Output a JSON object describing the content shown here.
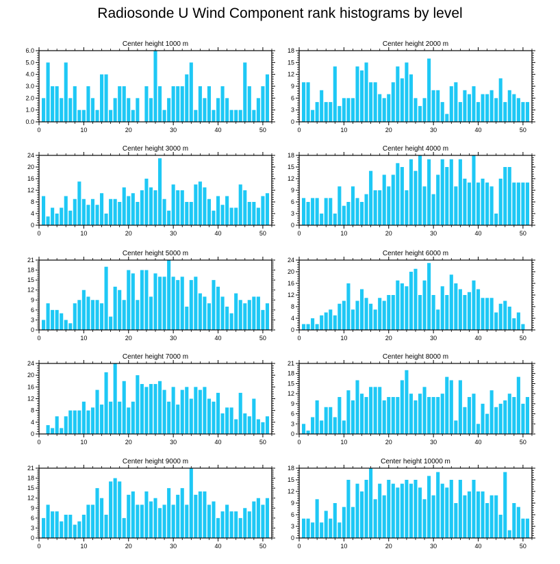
{
  "title": "Radiosonde U Wind Component rank histograms by level",
  "bar_color": "#1EC8F5",
  "chart_data": [
    {
      "type": "bar",
      "title": "Center height 1000 m",
      "xlabel": "",
      "ylabel": "",
      "xlim": [
        0,
        52
      ],
      "ylim": [
        0,
        6
      ],
      "yticks": [
        0,
        1,
        2,
        3,
        4,
        5,
        6
      ],
      "ytick_labels": [
        "0.0",
        "1.0",
        "2.0",
        "3.0",
        "4.0",
        "5.0",
        "6.0"
      ],
      "xticks": [
        0,
        10,
        20,
        30,
        40,
        50
      ],
      "xtick_labels": [
        "0",
        "10",
        "20",
        "30",
        "40",
        "50"
      ],
      "x": [
        1,
        2,
        3,
        4,
        5,
        6,
        7,
        8,
        9,
        10,
        11,
        12,
        13,
        14,
        15,
        16,
        17,
        18,
        19,
        20,
        21,
        22,
        23,
        24,
        25,
        26,
        27,
        28,
        29,
        30,
        31,
        32,
        33,
        34,
        35,
        36,
        37,
        38,
        39,
        40,
        41,
        42,
        43,
        44,
        45,
        46,
        47,
        48,
        49,
        50,
        51
      ],
      "values": [
        2,
        5,
        3,
        3,
        2,
        5,
        2,
        3,
        1,
        1,
        3,
        2,
        1,
        4,
        4,
        1,
        2,
        3,
        3,
        2,
        1,
        2,
        0,
        3,
        2,
        6,
        3,
        1,
        2,
        3,
        3,
        3,
        4,
        5,
        1,
        3,
        2,
        3,
        1,
        2,
        3,
        2,
        1,
        1,
        1,
        5,
        3,
        1,
        2,
        3,
        4
      ]
    },
    {
      "type": "bar",
      "title": "Center height 2000 m",
      "xlabel": "",
      "ylabel": "",
      "xlim": [
        0,
        52
      ],
      "ylim": [
        0,
        18
      ],
      "yticks": [
        0,
        3,
        6,
        9,
        12,
        15,
        18
      ],
      "ytick_labels": [
        "0",
        "3",
        "6",
        "9",
        "12",
        "15",
        "18"
      ],
      "xticks": [
        0,
        10,
        20,
        30,
        40,
        50
      ],
      "xtick_labels": [
        "0",
        "10",
        "20",
        "30",
        "40",
        "50"
      ],
      "x": [
        1,
        2,
        3,
        4,
        5,
        6,
        7,
        8,
        9,
        10,
        11,
        12,
        13,
        14,
        15,
        16,
        17,
        18,
        19,
        20,
        21,
        22,
        23,
        24,
        25,
        26,
        27,
        28,
        29,
        30,
        31,
        32,
        33,
        34,
        35,
        36,
        37,
        38,
        39,
        40,
        41,
        42,
        43,
        44,
        45,
        46,
        47,
        48,
        49,
        50,
        51
      ],
      "values": [
        10,
        10,
        3,
        5,
        8,
        5,
        5,
        14,
        4,
        6,
        6,
        6,
        14,
        13,
        15,
        10,
        10,
        7,
        6,
        7,
        10,
        14,
        11,
        15,
        12,
        6,
        4,
        6,
        16,
        8,
        8,
        5,
        2,
        9,
        10,
        5,
        8,
        7,
        9,
        5,
        7,
        7,
        8,
        6,
        11,
        5,
        8,
        7,
        6,
        5,
        5
      ]
    },
    {
      "type": "bar",
      "title": "Center height 3000 m",
      "xlabel": "",
      "ylabel": "",
      "xlim": [
        0,
        52
      ],
      "ylim": [
        0,
        24
      ],
      "yticks": [
        0,
        4,
        8,
        12,
        16,
        20,
        24
      ],
      "ytick_labels": [
        "0",
        "4",
        "8",
        "12",
        "16",
        "20",
        "24"
      ],
      "xticks": [
        0,
        10,
        20,
        30,
        40,
        50
      ],
      "xtick_labels": [
        "0",
        "10",
        "20",
        "30",
        "40",
        "50"
      ],
      "x": [
        1,
        2,
        3,
        4,
        5,
        6,
        7,
        8,
        9,
        10,
        11,
        12,
        13,
        14,
        15,
        16,
        17,
        18,
        19,
        20,
        21,
        22,
        23,
        24,
        25,
        26,
        27,
        28,
        29,
        30,
        31,
        32,
        33,
        34,
        35,
        36,
        37,
        38,
        39,
        40,
        41,
        42,
        43,
        44,
        45,
        46,
        47,
        48,
        49,
        50,
        51
      ],
      "values": [
        10,
        3,
        6,
        4,
        6,
        10,
        5,
        9,
        15,
        9,
        7,
        9,
        7,
        11,
        4,
        9,
        9,
        8,
        13,
        10,
        11,
        8,
        12,
        16,
        13,
        12,
        23,
        9,
        5,
        14,
        12,
        12,
        8,
        8,
        14,
        15,
        13,
        9,
        5,
        10,
        7,
        10,
        6,
        6,
        14,
        12,
        8,
        8,
        6,
        10,
        11
      ]
    },
    {
      "type": "bar",
      "title": "Center height 4000 m",
      "xlabel": "",
      "ylabel": "",
      "xlim": [
        0,
        52
      ],
      "ylim": [
        0,
        18
      ],
      "yticks": [
        0,
        3,
        6,
        9,
        12,
        15,
        18
      ],
      "ytick_labels": [
        "0",
        "3",
        "6",
        "9",
        "12",
        "15",
        "18"
      ],
      "xticks": [
        0,
        10,
        20,
        30,
        40,
        50
      ],
      "xtick_labels": [
        "0",
        "10",
        "20",
        "30",
        "40",
        "50"
      ],
      "x": [
        1,
        2,
        3,
        4,
        5,
        6,
        7,
        8,
        9,
        10,
        11,
        12,
        13,
        14,
        15,
        16,
        17,
        18,
        19,
        20,
        21,
        22,
        23,
        24,
        25,
        26,
        27,
        28,
        29,
        30,
        31,
        32,
        33,
        34,
        35,
        36,
        37,
        38,
        39,
        40,
        41,
        42,
        43,
        44,
        45,
        46,
        47,
        48,
        49,
        50,
        51
      ],
      "values": [
        7,
        6,
        7,
        7,
        3,
        7,
        7,
        3,
        10,
        5,
        6,
        10,
        7,
        6,
        8,
        14,
        9,
        9,
        13,
        10,
        13,
        16,
        15,
        9,
        17,
        14,
        18,
        10,
        17,
        8,
        13,
        17,
        15,
        17,
        10,
        17,
        12,
        11,
        18,
        11,
        12,
        11,
        10,
        3,
        12,
        15,
        15,
        11,
        11,
        11,
        11
      ]
    },
    {
      "type": "bar",
      "title": "Center height 5000 m",
      "xlabel": "",
      "ylabel": "",
      "xlim": [
        0,
        52
      ],
      "ylim": [
        0,
        21
      ],
      "yticks": [
        0,
        3,
        6,
        9,
        12,
        15,
        18,
        21
      ],
      "ytick_labels": [
        "0",
        "3",
        "6",
        "9",
        "12",
        "15",
        "18",
        "21"
      ],
      "xticks": [
        0,
        10,
        20,
        30,
        40,
        50
      ],
      "xtick_labels": [
        "0",
        "10",
        "20",
        "30",
        "40",
        "50"
      ],
      "x": [
        1,
        2,
        3,
        4,
        5,
        6,
        7,
        8,
        9,
        10,
        11,
        12,
        13,
        14,
        15,
        16,
        17,
        18,
        19,
        20,
        21,
        22,
        23,
        24,
        25,
        26,
        27,
        28,
        29,
        30,
        31,
        32,
        33,
        34,
        35,
        36,
        37,
        38,
        39,
        40,
        41,
        42,
        43,
        44,
        45,
        46,
        47,
        48,
        49,
        50,
        51
      ],
      "values": [
        3,
        8,
        6,
        6,
        5,
        3,
        2,
        8,
        9,
        12,
        10,
        9,
        9,
        8,
        19,
        4,
        13,
        12,
        9,
        18,
        17,
        9,
        18,
        18,
        10,
        17,
        16,
        16,
        21,
        16,
        15,
        16,
        7,
        15,
        16,
        11,
        10,
        8,
        15,
        13,
        10,
        7,
        5,
        11,
        9,
        8,
        9,
        10,
        10,
        6,
        8
      ]
    },
    {
      "type": "bar",
      "title": "Center height 6000 m",
      "xlabel": "",
      "ylabel": "",
      "xlim": [
        0,
        52
      ],
      "ylim": [
        0,
        24
      ],
      "yticks": [
        0,
        4,
        8,
        12,
        16,
        20,
        24
      ],
      "ytick_labels": [
        "0",
        "4",
        "8",
        "12",
        "16",
        "20",
        "24"
      ],
      "xticks": [
        0,
        10,
        20,
        30,
        40,
        50
      ],
      "xtick_labels": [
        "0",
        "10",
        "20",
        "30",
        "40",
        "50"
      ],
      "x": [
        1,
        2,
        3,
        4,
        5,
        6,
        7,
        8,
        9,
        10,
        11,
        12,
        13,
        14,
        15,
        16,
        17,
        18,
        19,
        20,
        21,
        22,
        23,
        24,
        25,
        26,
        27,
        28,
        29,
        30,
        31,
        32,
        33,
        34,
        35,
        36,
        37,
        38,
        39,
        40,
        41,
        42,
        43,
        44,
        45,
        46,
        47,
        48,
        49,
        50,
        51
      ],
      "values": [
        2,
        2,
        4,
        2,
        5,
        6,
        7,
        5,
        9,
        10,
        16,
        7,
        10,
        14,
        11,
        9,
        7,
        11,
        10,
        12,
        12,
        17,
        16,
        15,
        20,
        21,
        12,
        17,
        23,
        12,
        7,
        15,
        12,
        19,
        16,
        14,
        12,
        13,
        17,
        14,
        11,
        11,
        11,
        6,
        9,
        10,
        8,
        4,
        6,
        2,
        0
      ]
    },
    {
      "type": "bar",
      "title": "Center height 7000 m",
      "xlabel": "",
      "ylabel": "",
      "xlim": [
        0,
        52
      ],
      "ylim": [
        0,
        24
      ],
      "yticks": [
        0,
        4,
        8,
        12,
        16,
        20,
        24
      ],
      "ytick_labels": [
        "0",
        "4",
        "8",
        "12",
        "16",
        "20",
        "24"
      ],
      "xticks": [
        0,
        10,
        20,
        30,
        40,
        50
      ],
      "xtick_labels": [
        "0",
        "10",
        "20",
        "30",
        "40",
        "50"
      ],
      "x": [
        1,
        2,
        3,
        4,
        5,
        6,
        7,
        8,
        9,
        10,
        11,
        12,
        13,
        14,
        15,
        16,
        17,
        18,
        19,
        20,
        21,
        22,
        23,
        24,
        25,
        26,
        27,
        28,
        29,
        30,
        31,
        32,
        33,
        34,
        35,
        36,
        37,
        38,
        39,
        40,
        41,
        42,
        43,
        44,
        45,
        46,
        47,
        48,
        49,
        50,
        51
      ],
      "values": [
        0,
        3,
        2,
        6,
        2,
        6,
        8,
        8,
        8,
        11,
        8,
        9,
        15,
        10,
        21,
        11,
        24,
        11,
        18,
        9,
        11,
        20,
        17,
        16,
        17,
        17,
        18,
        15,
        11,
        16,
        10,
        15,
        16,
        12,
        16,
        15,
        16,
        12,
        11,
        14,
        7,
        9,
        9,
        5,
        14,
        7,
        6,
        12,
        5,
        4,
        6
      ]
    },
    {
      "type": "bar",
      "title": "Center height 8000 m",
      "xlabel": "",
      "ylabel": "",
      "xlim": [
        0,
        52
      ],
      "ylim": [
        0,
        21
      ],
      "yticks": [
        0,
        3,
        6,
        9,
        12,
        15,
        18,
        21
      ],
      "ytick_labels": [
        "0",
        "3",
        "6",
        "9",
        "12",
        "15",
        "18",
        "21"
      ],
      "xticks": [
        0,
        10,
        20,
        30,
        40,
        50
      ],
      "xtick_labels": [
        "0",
        "10",
        "20",
        "30",
        "40",
        "50"
      ],
      "x": [
        1,
        2,
        3,
        4,
        5,
        6,
        7,
        8,
        9,
        10,
        11,
        12,
        13,
        14,
        15,
        16,
        17,
        18,
        19,
        20,
        21,
        22,
        23,
        24,
        25,
        26,
        27,
        28,
        29,
        30,
        31,
        32,
        33,
        34,
        35,
        36,
        37,
        38,
        39,
        40,
        41,
        42,
        43,
        44,
        45,
        46,
        47,
        48,
        49,
        50,
        51
      ],
      "values": [
        3,
        1,
        5,
        10,
        4,
        8,
        8,
        5,
        11,
        4,
        13,
        10,
        16,
        12,
        11,
        14,
        14,
        14,
        10,
        11,
        11,
        11,
        16,
        19,
        12,
        10,
        12,
        14,
        11,
        11,
        11,
        12,
        17,
        16,
        4,
        16,
        8,
        11,
        12,
        3,
        9,
        6,
        13,
        8,
        9,
        10,
        12,
        11,
        17,
        9,
        11
      ]
    },
    {
      "type": "bar",
      "title": "Center height 9000 m",
      "xlabel": "",
      "ylabel": "",
      "xlim": [
        0,
        52
      ],
      "ylim": [
        0,
        21
      ],
      "yticks": [
        0,
        3,
        6,
        9,
        12,
        15,
        18,
        21
      ],
      "ytick_labels": [
        "0",
        "3",
        "6",
        "9",
        "12",
        "15",
        "18",
        "21"
      ],
      "xticks": [
        0,
        10,
        20,
        30,
        40,
        50
      ],
      "xtick_labels": [
        "0",
        "10",
        "20",
        "30",
        "40",
        "50"
      ],
      "x": [
        1,
        2,
        3,
        4,
        5,
        6,
        7,
        8,
        9,
        10,
        11,
        12,
        13,
        14,
        15,
        16,
        17,
        18,
        19,
        20,
        21,
        22,
        23,
        24,
        25,
        26,
        27,
        28,
        29,
        30,
        31,
        32,
        33,
        34,
        35,
        36,
        37,
        38,
        39,
        40,
        41,
        42,
        43,
        44,
        45,
        46,
        47,
        48,
        49,
        50,
        51
      ],
      "values": [
        6,
        10,
        8,
        8,
        5,
        7,
        7,
        4,
        5,
        7,
        10,
        10,
        15,
        12,
        7,
        17,
        18,
        17,
        6,
        13,
        14,
        10,
        10,
        14,
        11,
        12,
        9,
        10,
        15,
        10,
        13,
        15,
        10,
        21,
        13,
        14,
        14,
        10,
        11,
        6,
        8,
        10,
        8,
        8,
        6,
        9,
        8,
        11,
        12,
        10,
        12
      ]
    },
    {
      "type": "bar",
      "title": "Center height 10000 m",
      "xlabel": "",
      "ylabel": "",
      "xlim": [
        0,
        52
      ],
      "ylim": [
        0,
        18
      ],
      "yticks": [
        0,
        3,
        6,
        9,
        12,
        15,
        18
      ],
      "ytick_labels": [
        "0",
        "3",
        "6",
        "9",
        "12",
        "15",
        "18"
      ],
      "xticks": [
        0,
        10,
        20,
        30,
        40,
        50
      ],
      "xtick_labels": [
        "0",
        "10",
        "20",
        "30",
        "40",
        "50"
      ],
      "x": [
        1,
        2,
        3,
        4,
        5,
        6,
        7,
        8,
        9,
        10,
        11,
        12,
        13,
        14,
        15,
        16,
        17,
        18,
        19,
        20,
        21,
        22,
        23,
        24,
        25,
        26,
        27,
        28,
        29,
        30,
        31,
        32,
        33,
        34,
        35,
        36,
        37,
        38,
        39,
        40,
        41,
        42,
        43,
        44,
        45,
        46,
        47,
        48,
        49,
        50,
        51
      ],
      "values": [
        5,
        5,
        4,
        10,
        4,
        7,
        5,
        9,
        4,
        8,
        15,
        8,
        14,
        12,
        15,
        18,
        10,
        14,
        11,
        15,
        14,
        13,
        14,
        15,
        14,
        15,
        13,
        10,
        16,
        11,
        17,
        14,
        13,
        15,
        9,
        15,
        11,
        12,
        15,
        12,
        12,
        9,
        11,
        11,
        6,
        17,
        2,
        9,
        8,
        5,
        5
      ]
    }
  ]
}
